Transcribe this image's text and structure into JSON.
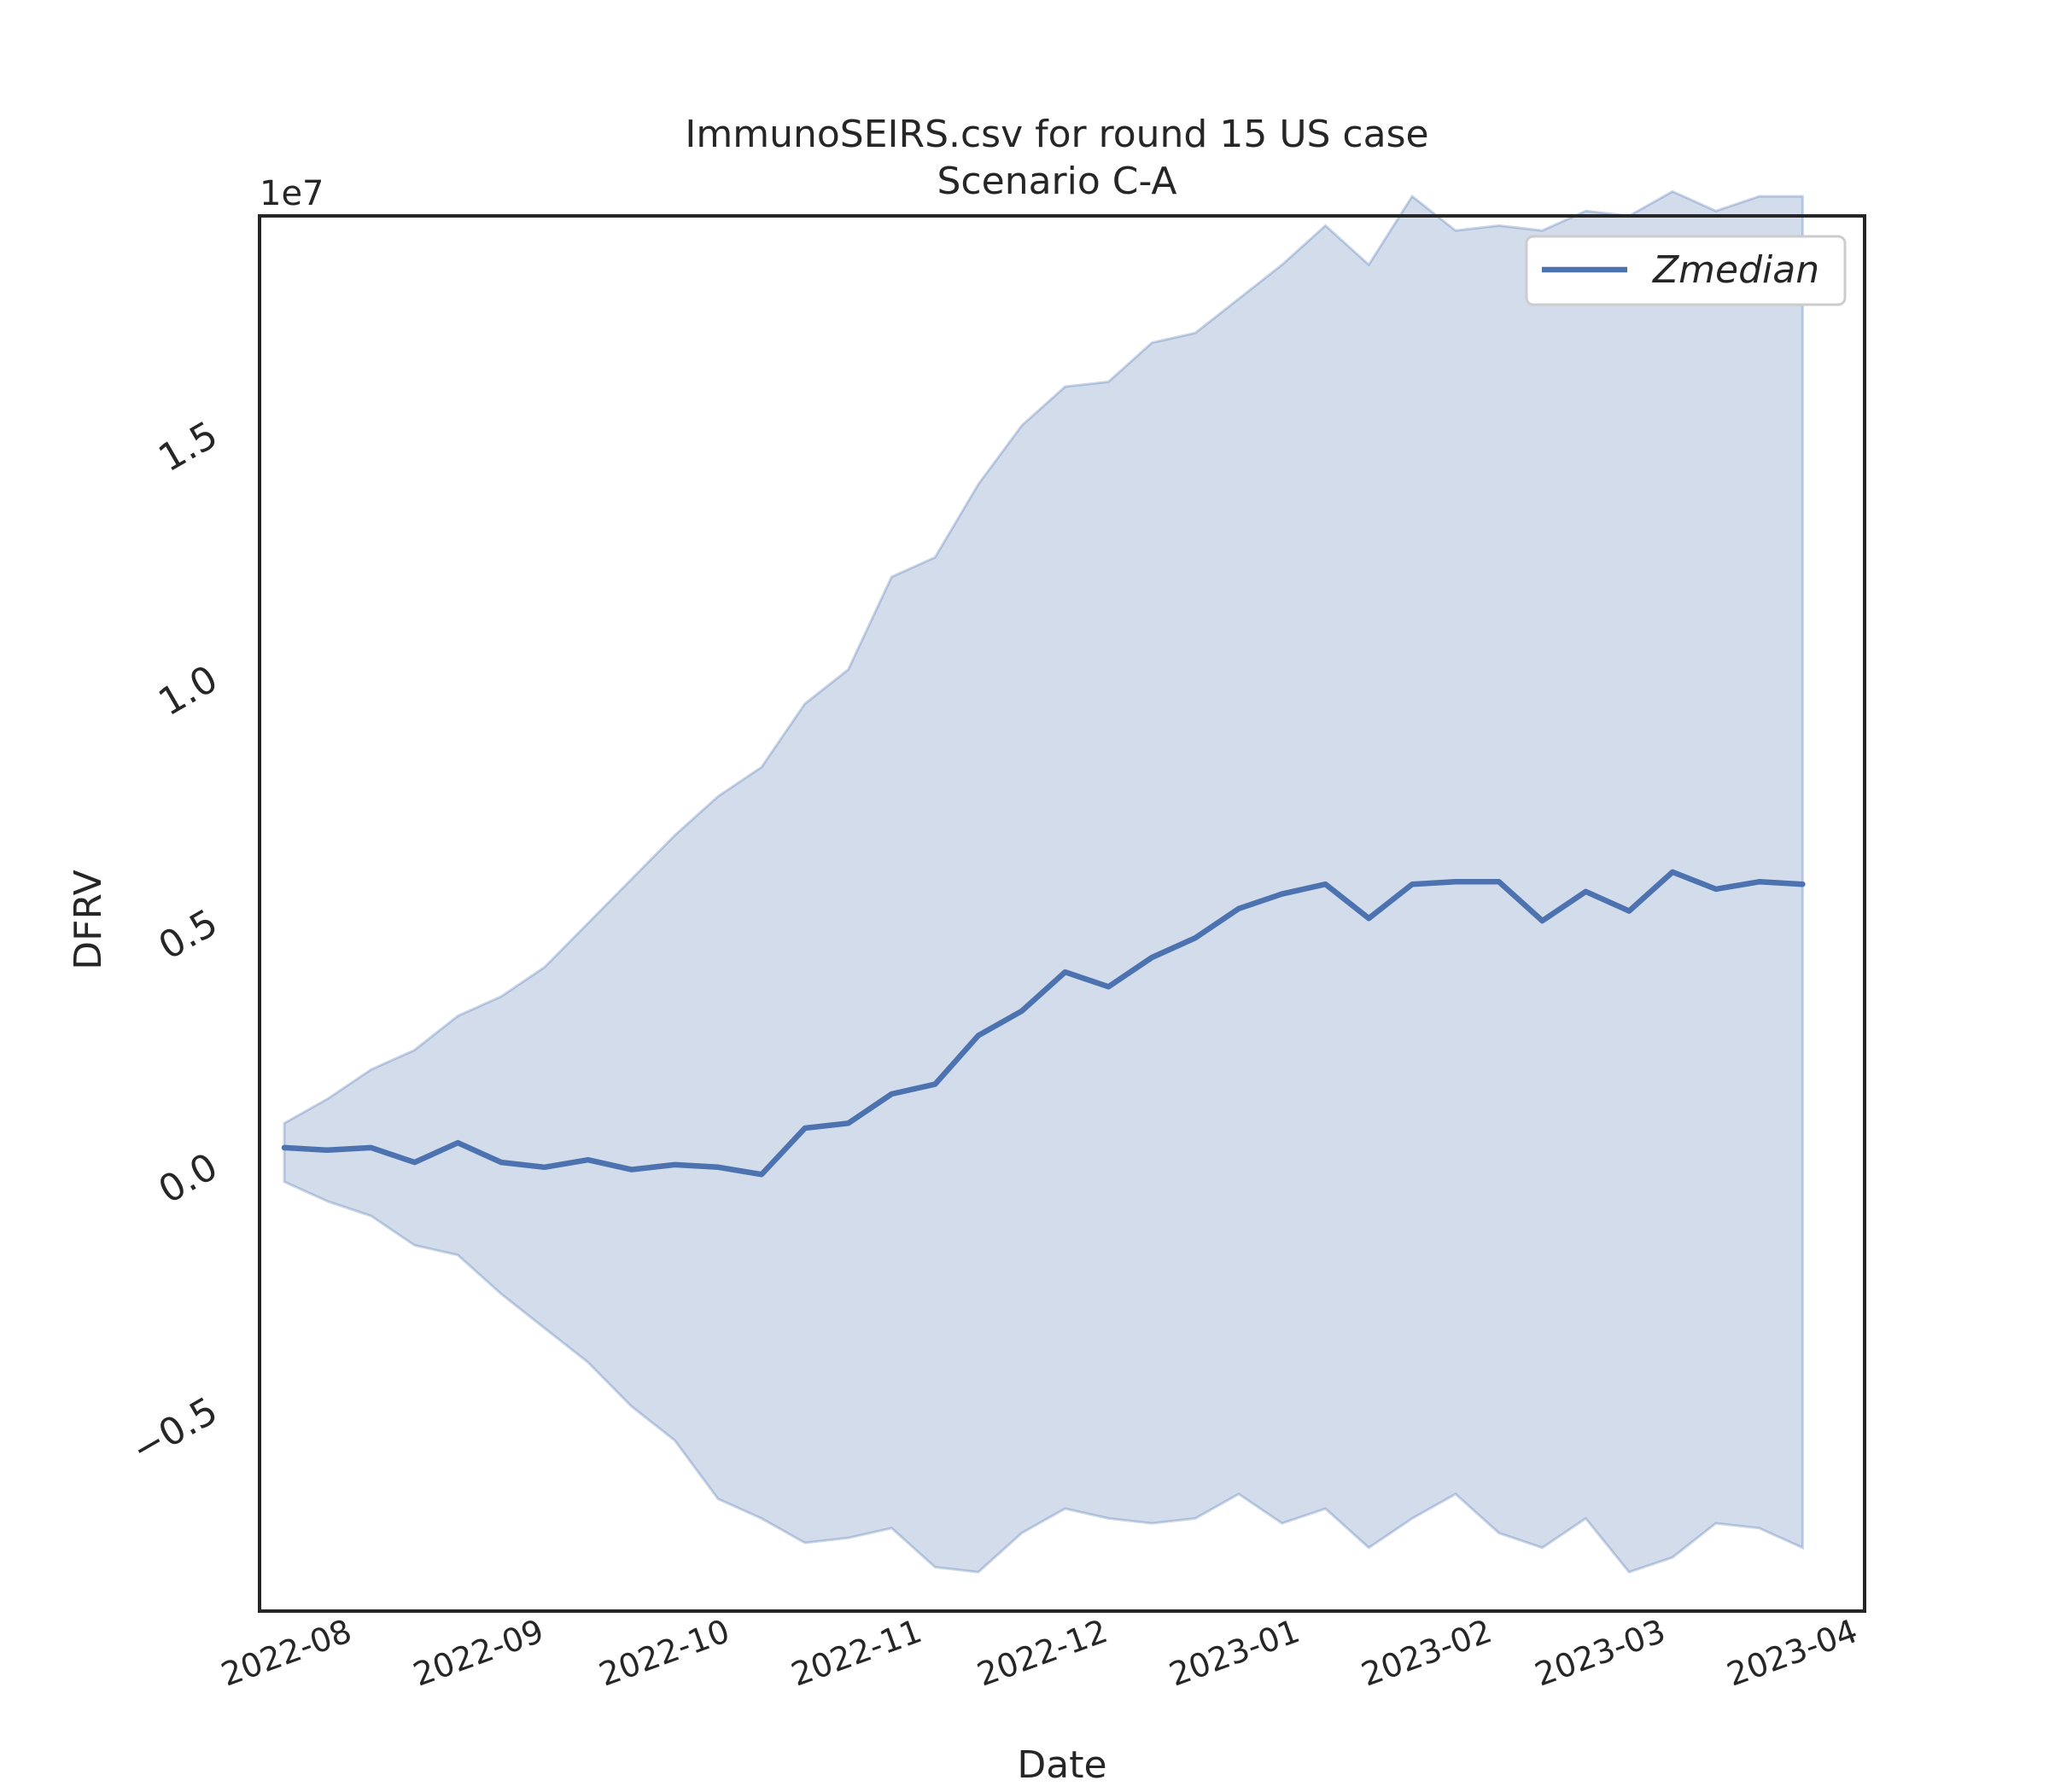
{
  "chart_data": {
    "type": "area",
    "title": "ImmunoSEIRS.csv for round 15 US case",
    "subtitle": "Scenario C-A",
    "xlabel": "Date",
    "ylabel": "DFRV",
    "y_offset_label": "1e7",
    "y_multiplier": 10000000,
    "ylim": [
      -0.93,
      1.93
    ],
    "xlim": [
      "2022-07-19",
      "2023-04-04"
    ],
    "x_ticks": [
      "2022-08-01",
      "2022-09-01",
      "2022-10-01",
      "2022-11-01",
      "2022-12-01",
      "2023-01-01",
      "2023-02-01",
      "2023-03-01",
      "2023-04-01"
    ],
    "x_tick_labels": [
      "2022-08",
      "2022-09",
      "2022-10",
      "2022-11",
      "2022-12",
      "2023-01",
      "2023-02",
      "2023-03",
      "2023-04"
    ],
    "y_ticks": [
      -0.5,
      0.0,
      0.5,
      1.0,
      1.5
    ],
    "y_tick_labels": [
      "−0.5",
      "0.0",
      "0.5",
      "1.0",
      "1.5"
    ],
    "legend": {
      "position": "top-right",
      "entries": [
        "Zmedian"
      ]
    },
    "grid": false,
    "colors": {
      "line": "#4c72b0",
      "band": "#4c72b0"
    },
    "series": [
      {
        "name": "Zmedian",
        "x": [
          "2022-07-23",
          "2022-07-30",
          "2022-08-06",
          "2022-08-13",
          "2022-08-20",
          "2022-08-27",
          "2022-09-03",
          "2022-09-10",
          "2022-09-17",
          "2022-09-24",
          "2022-10-01",
          "2022-10-08",
          "2022-10-15",
          "2022-10-22",
          "2022-10-29",
          "2022-11-05",
          "2022-11-12",
          "2022-11-19",
          "2022-11-26",
          "2022-12-03",
          "2022-12-10",
          "2022-12-17",
          "2022-12-24",
          "2022-12-31",
          "2023-01-07",
          "2023-01-14",
          "2023-01-21",
          "2023-01-28",
          "2023-02-04",
          "2023-02-11",
          "2023-02-18",
          "2023-02-25",
          "2023-03-04",
          "2023-03-11",
          "2023-03-18",
          "2023-03-25"
        ],
        "values": [
          0.02,
          0.015,
          0.02,
          -0.01,
          0.03,
          -0.01,
          -0.02,
          -0.005,
          -0.025,
          -0.015,
          -0.02,
          -0.035,
          0.06,
          0.07,
          0.13,
          0.15,
          0.25,
          0.3,
          0.38,
          0.35,
          0.41,
          0.45,
          0.51,
          0.54,
          0.56,
          0.49,
          0.56,
          0.565,
          0.565,
          0.485,
          0.545,
          0.505,
          0.585,
          0.55,
          0.565,
          0.56
        ],
        "lower": [
          -0.05,
          -0.09,
          -0.12,
          -0.18,
          -0.2,
          -0.28,
          -0.35,
          -0.42,
          -0.51,
          -0.58,
          -0.7,
          -0.74,
          -0.79,
          -0.78,
          -0.76,
          -0.84,
          -0.85,
          -0.77,
          -0.72,
          -0.74,
          -0.75,
          -0.74,
          -0.69,
          -0.75,
          -0.72,
          -0.8,
          -0.74,
          -0.69,
          -0.77,
          -0.8,
          -0.74,
          -0.85,
          -0.82,
          -0.75,
          -0.76,
          -0.8
        ],
        "upper": [
          0.07,
          0.12,
          0.18,
          0.22,
          0.29,
          0.33,
          0.39,
          0.48,
          0.57,
          0.66,
          0.74,
          0.8,
          0.93,
          1.0,
          1.19,
          1.23,
          1.38,
          1.5,
          1.58,
          1.59,
          1.67,
          1.69,
          1.76,
          1.83,
          1.91,
          1.83,
          1.97,
          1.9,
          1.91,
          1.9,
          1.94,
          1.93,
          1.98,
          1.94,
          1.97,
          1.97
        ]
      }
    ]
  }
}
